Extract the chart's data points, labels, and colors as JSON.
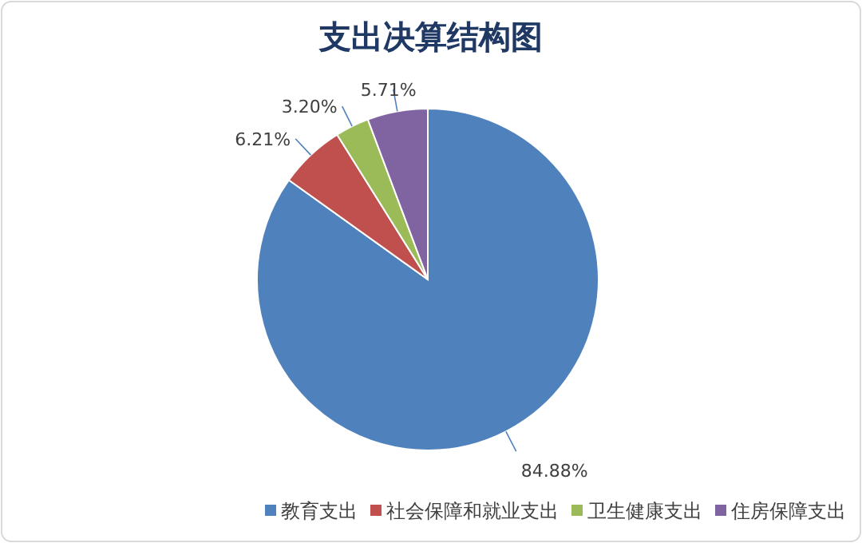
{
  "chart_data": {
    "type": "pie",
    "title": "支出决算结构图",
    "categories": [
      "教育支出",
      "社会保障和就业支出",
      "卫生健康支出",
      "住房保障支出"
    ],
    "values": [
      84.88,
      6.21,
      3.2,
      5.71
    ],
    "value_labels": [
      "84.88%",
      "6.21%",
      "3.20%",
      "5.71%"
    ],
    "colors": [
      "#4f81bd",
      "#c0504d",
      "#9bbb59",
      "#8064a2"
    ],
    "legend": "bottom right"
  }
}
